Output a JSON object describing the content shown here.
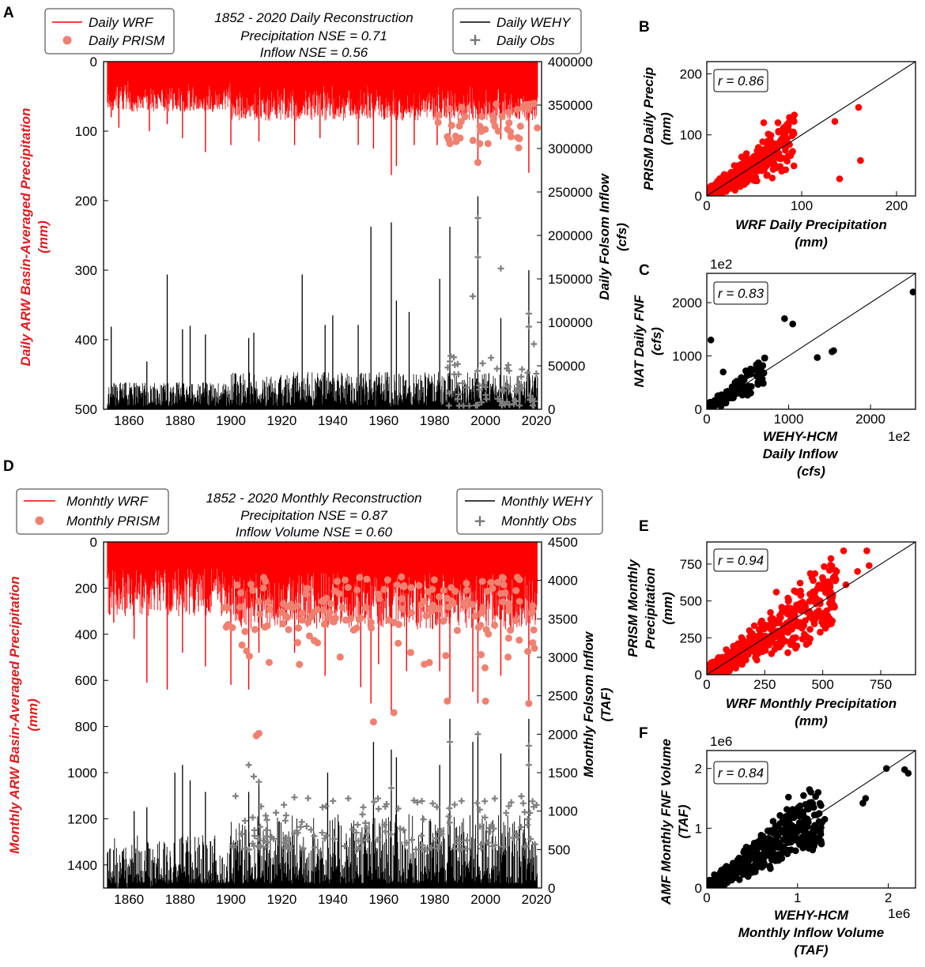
{
  "panel_labels": {
    "a": "A",
    "b": "B",
    "c": "C",
    "d": "D",
    "e": "E",
    "f": "F"
  },
  "colors": {
    "wrf": "#ff0000",
    "prism": "#f08070",
    "wehy": "#000000",
    "obs": "#808080",
    "scatter_red": "#ff0000",
    "scatter_black": "#000000"
  },
  "chart_data": [
    {
      "id": "A",
      "type": "line",
      "title": [
        "1852 - 2020 Daily Reconstruction",
        "Precipitation NSE = 0.71",
        "Inflow NSE = 0.56"
      ],
      "legend_left": [
        "Daily WRF",
        "Daily PRISM"
      ],
      "legend_right": [
        "Daily WEHY",
        "Daily Obs"
      ],
      "ylabel_left": [
        "Daily ARW Basin-Averaged Precipitation",
        "(mm)"
      ],
      "ylabel_right": [
        "Daily Folsom Inflow",
        "(cfs)"
      ],
      "xlim": [
        1850,
        2022
      ],
      "ylim_left_inverted": [
        0,
        500
      ],
      "ylim_right": [
        0,
        400000
      ],
      "x_ticks": [
        "1860",
        "1880",
        "1900",
        "1920",
        "1940",
        "1960",
        "1980",
        "2000",
        "2020"
      ],
      "y_left_ticks": [
        "0",
        "100",
        "200",
        "300",
        "400",
        "500"
      ],
      "y_right_ticks": [
        "0",
        "50000",
        "100000",
        "150000",
        "200000",
        "250000",
        "300000",
        "350000",
        "400000"
      ],
      "precip_spikes_mm": [
        [
          1853,
          80
        ],
        [
          1856,
          95
        ],
        [
          1862,
          60
        ],
        [
          1868,
          100
        ],
        [
          1875,
          90
        ],
        [
          1881,
          110
        ],
        [
          1890,
          130
        ],
        [
          1900,
          120
        ],
        [
          1911,
          115
        ],
        [
          1925,
          120
        ],
        [
          1935,
          110
        ],
        [
          1950,
          120
        ],
        [
          1956,
          125
        ],
        [
          1963,
          163
        ],
        [
          1965,
          150
        ],
        [
          1972,
          120
        ],
        [
          1981,
          120
        ],
        [
          1986,
          120
        ],
        [
          1997,
          145
        ],
        [
          2006,
          112
        ],
        [
          2017,
          160
        ]
      ],
      "inflow_spikes_cfs": [
        [
          1853,
          95000
        ],
        [
          1862,
          30000
        ],
        [
          1867,
          55000
        ],
        [
          1875,
          155000
        ],
        [
          1881,
          92000
        ],
        [
          1884,
          96000
        ],
        [
          1890,
          86000
        ],
        [
          1907,
          82000
        ],
        [
          1909,
          88000
        ],
        [
          1928,
          155000
        ],
        [
          1937,
          97000
        ],
        [
          1940,
          108000
        ],
        [
          1950,
          97000
        ],
        [
          1955,
          210000
        ],
        [
          1963,
          215000
        ],
        [
          1965,
          125000
        ],
        [
          1970,
          112000
        ],
        [
          1982,
          150000
        ],
        [
          1986,
          210000
        ],
        [
          1997,
          245000
        ],
        [
          2006,
          105000
        ],
        [
          2017,
          160000
        ]
      ],
      "obs_points_cfs": [
        [
          1986,
          55000
        ],
        [
          1995,
          130000
        ],
        [
          1997,
          220000
        ],
        [
          1997,
          175000
        ],
        [
          2006,
          162000
        ],
        [
          2017,
          110000
        ],
        [
          2017,
          95000
        ],
        [
          2019,
          75000
        ]
      ]
    },
    {
      "id": "B",
      "type": "scatter",
      "annotation": "r = 0.86",
      "xlabel": [
        "WRF Daily Precipitation",
        "(mm)"
      ],
      "ylabel": [
        "PRISM Daily Precip",
        "(mm)"
      ],
      "xlim": [
        0,
        220
      ],
      "ylim": [
        0,
        220
      ],
      "x_ticks": [
        "0",
        "100",
        "200"
      ],
      "y_ticks": [
        "0",
        "100",
        "200"
      ],
      "notable_points": [
        [
          160,
          145
        ],
        [
          135,
          122
        ],
        [
          140,
          28
        ],
        [
          162,
          58
        ],
        [
          75,
          120
        ],
        [
          90,
          105
        ],
        [
          60,
          120
        ],
        [
          92,
          122
        ]
      ]
    },
    {
      "id": "C",
      "type": "scatter",
      "annotation": "r = 0.83",
      "offset_label": "1e2",
      "xlabel": [
        "WEHY-HCM",
        "Daily Inflow",
        "(cfs)"
      ],
      "ylabel": [
        "NAT Daily FNF",
        "(cfs)"
      ],
      "xlim": [
        0,
        2550
      ],
      "ylim": [
        0,
        2550
      ],
      "x_ticks": [
        "0",
        "1000",
        "2000"
      ],
      "y_ticks": [
        "0",
        "1000",
        "2000"
      ],
      "notable_points": [
        [
          2520,
          2200
        ],
        [
          1530,
          1080
        ],
        [
          1550,
          1100
        ],
        [
          950,
          1700
        ],
        [
          1050,
          1600
        ],
        [
          50,
          1300
        ],
        [
          1350,
          970
        ],
        [
          200,
          700
        ]
      ]
    },
    {
      "id": "D",
      "type": "line",
      "title": [
        "1852 - 2020 Monthly Reconstruction",
        "Precipitation NSE = 0.87",
        "Inflow Volume NSE = 0.60"
      ],
      "legend_left": [
        "Monhtly WRF",
        "Monthly PRISM"
      ],
      "legend_right": [
        "Monthly WEHY",
        "Monhtly Obs"
      ],
      "ylabel_left": [
        "Monthly ARW Basin-Averaged Precipitation",
        "(mm)"
      ],
      "ylabel_right": [
        "Monthly Folsom Inflow",
        "(TAF)"
      ],
      "xlim": [
        1850,
        2022
      ],
      "ylim_left_inverted": [
        0,
        1500
      ],
      "ylim_right": [
        0,
        4500
      ],
      "x_ticks": [
        "1860",
        "1880",
        "1900",
        "1920",
        "1940",
        "1960",
        "1980",
        "2000",
        "2020"
      ],
      "y_left_ticks": [
        "0",
        "200",
        "400",
        "600",
        "800",
        "1000",
        "1200",
        "1400"
      ],
      "y_right_ticks": [
        "0",
        "500",
        "1000",
        "1500",
        "2000",
        "2500",
        "3000",
        "3500",
        "4000",
        "4500"
      ],
      "precip_spikes_mm": [
        [
          1854,
          350
        ],
        [
          1862,
          420
        ],
        [
          1867,
          610
        ],
        [
          1875,
          640
        ],
        [
          1881,
          480
        ],
        [
          1890,
          540
        ],
        [
          1900,
          620
        ],
        [
          1907,
          640
        ],
        [
          1911,
          480
        ],
        [
          1925,
          480
        ],
        [
          1937,
          580
        ],
        [
          1951,
          630
        ],
        [
          1955,
          700
        ],
        [
          1958,
          530
        ],
        [
          1963,
          740
        ],
        [
          1969,
          560
        ],
        [
          1982,
          560
        ],
        [
          1986,
          700
        ],
        [
          1995,
          650
        ],
        [
          1997,
          700
        ],
        [
          2006,
          580
        ],
        [
          2017,
          710
        ]
      ],
      "prism_points_mm": [
        [
          1910,
          840
        ],
        [
          1911,
          830
        ],
        [
          1956,
          780
        ],
        [
          1964,
          740
        ],
        [
          1985,
          690
        ],
        [
          2000,
          690
        ],
        [
          2017,
          700
        ]
      ],
      "inflow_spikes_taf": [
        [
          1862,
          1000
        ],
        [
          1867,
          1050
        ],
        [
          1878,
          1500
        ],
        [
          1881,
          1600
        ],
        [
          1884,
          1400
        ],
        [
          1890,
          1250
        ],
        [
          1907,
          1250
        ],
        [
          1911,
          1400
        ],
        [
          1938,
          1500
        ],
        [
          1956,
          1900
        ],
        [
          1963,
          1800
        ],
        [
          1965,
          1700
        ],
        [
          1982,
          1600
        ],
        [
          1986,
          2200
        ],
        [
          1995,
          1900
        ],
        [
          1997,
          2000
        ],
        [
          2006,
          1750
        ],
        [
          2017,
          2200
        ]
      ],
      "obs_points_taf": [
        [
          1907,
          1600
        ],
        [
          1909,
          1450
        ],
        [
          1911,
          1380
        ],
        [
          1936,
          1050
        ],
        [
          1952,
          1050
        ],
        [
          1963,
          1300
        ],
        [
          1986,
          1900
        ],
        [
          1997,
          2000
        ],
        [
          2017,
          1850
        ],
        [
          2017,
          1600
        ]
      ]
    },
    {
      "id": "E",
      "type": "scatter",
      "annotation": "r = 0.94",
      "xlabel": [
        "WRF Monthly Precipitation",
        "(mm)"
      ],
      "ylabel": [
        "PRISM Monthly",
        "Precipitation",
        "(mm)"
      ],
      "xlim": [
        0,
        900
      ],
      "ylim": [
        0,
        900
      ],
      "x_ticks": [
        "0",
        "250",
        "500",
        "750"
      ],
      "y_ticks": [
        "0",
        "250",
        "500",
        "750"
      ],
      "notable_points": [
        [
          590,
          840
        ],
        [
          690,
          840
        ],
        [
          700,
          740
        ],
        [
          650,
          700
        ],
        [
          560,
          700
        ],
        [
          390,
          560
        ],
        [
          300,
          560
        ],
        [
          600,
          610
        ]
      ]
    },
    {
      "id": "F",
      "type": "scatter",
      "annotation": "r = 0.84",
      "offset_label": "1e6",
      "x_offset_label": "1e6",
      "xlabel": [
        "WEHY-HCM",
        "Monthly Inflow Volume",
        "(TAF)"
      ],
      "ylabel": [
        "AMF Monthly FNF Volume",
        "(TAF)"
      ],
      "xlim": [
        0,
        2.3
      ],
      "ylim": [
        0,
        2.3
      ],
      "x_ticks": [
        "0",
        "1",
        "2"
      ],
      "y_ticks": [
        "0",
        "1",
        "2"
      ],
      "notable_points": [
        [
          1.98,
          2.0
        ],
        [
          2.18,
          1.98
        ],
        [
          2.22,
          1.92
        ],
        [
          1.75,
          1.5
        ],
        [
          1.72,
          1.42
        ],
        [
          1.3,
          1.15
        ],
        [
          1.27,
          1.1
        ],
        [
          0.9,
          1.52
        ]
      ]
    }
  ]
}
